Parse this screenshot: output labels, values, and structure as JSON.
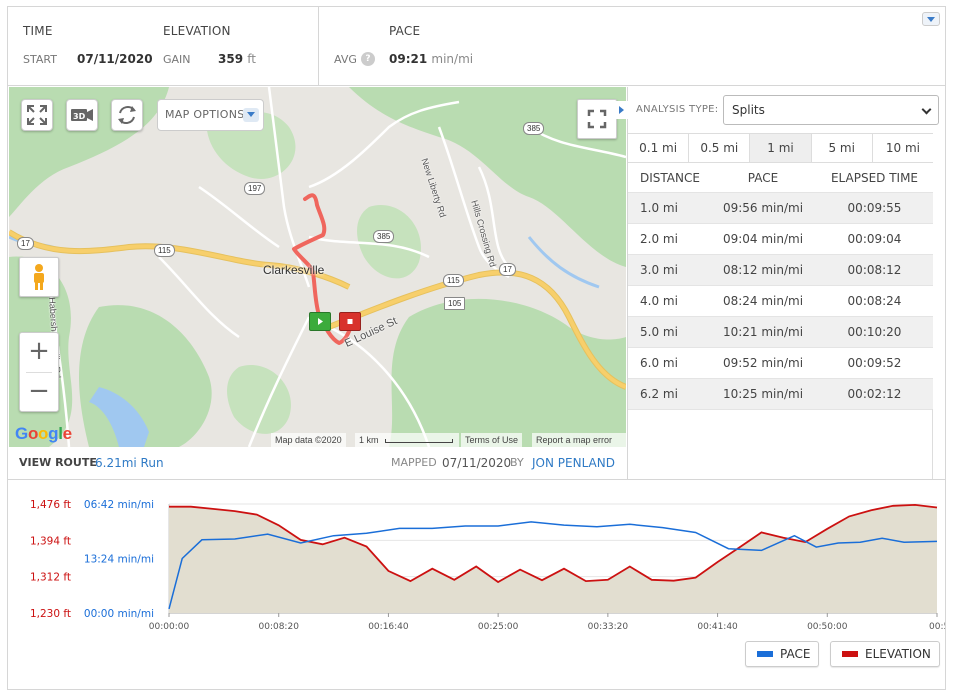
{
  "summary": {
    "time_label": "TIME",
    "start_label": "START",
    "start_value": "07/11/2020",
    "elevation_label": "ELEVATION",
    "gain_label": "GAIN",
    "gain_value": "359",
    "gain_unit": "ft",
    "pace_label": "PACE",
    "avg_label": "AVG",
    "help_glyph": "?",
    "avg_value": "09:21",
    "avg_unit": "min/mi"
  },
  "map": {
    "options_label": "MAP OPTIONS",
    "btn_3d": "3D",
    "town": "Clarkesville",
    "roads": [
      {
        "name": "New Liberty Rd"
      },
      {
        "name": "Hills Crossing Rd"
      },
      {
        "name": "E Louise St"
      },
      {
        "name": "Habersham Mills Rd"
      }
    ],
    "shields": [
      "385",
      "197",
      "385",
      "17",
      "115",
      "115",
      "17",
      "105"
    ],
    "zoom_in": "+",
    "zoom_out": "−",
    "google": [
      "G",
      "o",
      "o",
      "g",
      "l",
      "e"
    ],
    "google_colors": [
      "#4285f4",
      "#ea4335",
      "#fbbc05",
      "#4285f4",
      "#34a853",
      "#ea4335"
    ],
    "attribution": "Map data ©2020",
    "scale": "1 km",
    "terms": "Terms of Use",
    "report": "Report a map error",
    "colors": {
      "water": "#a0c8f0",
      "green": "#b9dcb1",
      "land": "#e8e6e1",
      "highway": "#f7cf6b",
      "route": "#f0584f"
    }
  },
  "route_bar": {
    "view_route_label": "VIEW ROUTE",
    "route_name": "6.21mi Run",
    "mapped_label": "MAPPED",
    "mapped_date": "07/11/2020",
    "by_label": "BY",
    "author": "JON PENLAND"
  },
  "analysis": {
    "type_label": "ANALYSIS TYPE:",
    "type_value": "Splits",
    "tabs": [
      "0.1 mi",
      "0.5 mi",
      "1 mi",
      "5 mi",
      "10 mi"
    ],
    "active_tab": 2,
    "columns": [
      "DISTANCE",
      "PACE",
      "ELAPSED TIME"
    ],
    "rows": [
      {
        "distance": "1.0 mi",
        "pace": "09:56 min/mi",
        "elapsed": "00:09:55"
      },
      {
        "distance": "2.0 mi",
        "pace": "09:04 min/mi",
        "elapsed": "00:09:04"
      },
      {
        "distance": "3.0 mi",
        "pace": "08:12 min/mi",
        "elapsed": "00:08:12"
      },
      {
        "distance": "4.0 mi",
        "pace": "08:24 min/mi",
        "elapsed": "00:08:24"
      },
      {
        "distance": "5.0 mi",
        "pace": "10:21 min/mi",
        "elapsed": "00:10:20"
      },
      {
        "distance": "6.0 mi",
        "pace": "09:52 min/mi",
        "elapsed": "00:09:52"
      },
      {
        "distance": "6.2 mi",
        "pace": "10:25 min/mi",
        "elapsed": "00:02:12"
      }
    ]
  },
  "chart_data": {
    "type": "line",
    "elevation_ticks": [
      "1,476 ft",
      "1,394 ft",
      "1,312 ft",
      "1,230 ft"
    ],
    "pace_ticks": [
      "06:42 min/mi",
      "13:24 min/mi",
      "00:00 min/mi"
    ],
    "x_ticks": [
      "00:00:00",
      "00:08:20",
      "00:16:40",
      "00:25:00",
      "00:33:20",
      "00:41:40",
      "00:50:00",
      "00:5"
    ],
    "x_range_seconds": [
      0,
      3500
    ],
    "elevation_range_ft": [
      1230,
      1476
    ],
    "series": [
      {
        "name": "PACE",
        "color": "#1a6ed8",
        "unit": "min/mi",
        "x": [
          0,
          60,
          150,
          300,
          450,
          600,
          750,
          900,
          1050,
          1200,
          1350,
          1500,
          1650,
          1800,
          1950,
          2100,
          2250,
          2400,
          2550,
          2700,
          2850,
          2950,
          3050,
          3150,
          3250,
          3350,
          3500
        ],
        "values": [
          19.6,
          13.4,
          11.1,
          11.0,
          10.4,
          11.5,
          10.6,
          10.3,
          9.7,
          9.7,
          9.4,
          9.4,
          8.9,
          9.3,
          9.5,
          9.2,
          9.6,
          10.2,
          12.2,
          12.4,
          10.6,
          12.0,
          11.5,
          11.4,
          10.9,
          11.4,
          11.3
        ]
      },
      {
        "name": "ELEVATION",
        "color": "#cc1111",
        "unit": "ft",
        "x": [
          0,
          100,
          200,
          300,
          400,
          500,
          600,
          700,
          800,
          900,
          1000,
          1100,
          1200,
          1300,
          1400,
          1500,
          1600,
          1700,
          1800,
          1900,
          2000,
          2100,
          2200,
          2300,
          2400,
          2500,
          2600,
          2700,
          2800,
          2900,
          3000,
          3100,
          3200,
          3300,
          3400,
          3500
        ],
        "values": [
          1470,
          1470,
          1465,
          1460,
          1452,
          1428,
          1395,
          1385,
          1400,
          1380,
          1325,
          1302,
          1330,
          1305,
          1335,
          1300,
          1328,
          1304,
          1330,
          1302,
          1305,
          1335,
          1305,
          1303,
          1310,
          1345,
          1378,
          1412,
          1400,
          1390,
          1420,
          1448,
          1462,
          1472,
          1474,
          1468
        ]
      }
    ],
    "grid": true,
    "area_fill": "#e2ded0"
  }
}
